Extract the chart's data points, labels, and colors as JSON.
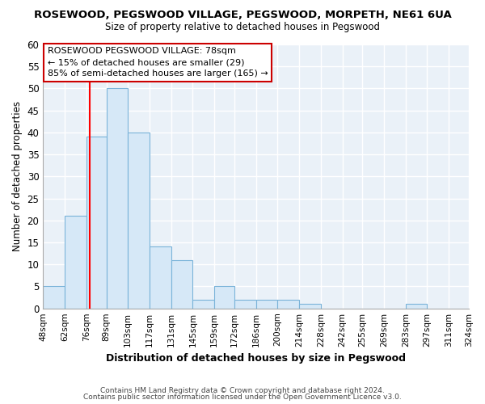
{
  "title": "ROSEWOOD, PEGSWOOD VILLAGE, PEGSWOOD, MORPETH, NE61 6UA",
  "subtitle": "Size of property relative to detached houses in Pegswood",
  "xlabel": "Distribution of detached houses by size in Pegswood",
  "ylabel": "Number of detached properties",
  "bin_edges": [
    48,
    62,
    76,
    89,
    103,
    117,
    131,
    145,
    159,
    172,
    186,
    200,
    214,
    228,
    242,
    255,
    269,
    283,
    297,
    311,
    324
  ],
  "bar_heights": [
    5,
    21,
    39,
    50,
    40,
    14,
    11,
    2,
    5,
    2,
    2,
    2,
    1,
    0,
    0,
    0,
    0,
    1,
    0,
    0
  ],
  "bar_color": "#d6e8f7",
  "bar_edge_color": "#7ab3d9",
  "property_line_x": 78,
  "property_line_color": "red",
  "ylim": [
    0,
    60
  ],
  "yticks": [
    0,
    5,
    10,
    15,
    20,
    25,
    30,
    35,
    40,
    45,
    50,
    55,
    60
  ],
  "annotation_text_line1": "ROSEWOOD PEGSWOOD VILLAGE: 78sqm",
  "annotation_text_line2": "← 15% of detached houses are smaller (29)",
  "annotation_text_line3": "85% of semi-detached houses are larger (165) →",
  "footer_line1": "Contains HM Land Registry data © Crown copyright and database right 2024.",
  "footer_line2": "Contains public sector information licensed under the Open Government Licence v3.0.",
  "background_color": "#ffffff",
  "plot_bg_color": "#eaf1f8",
  "grid_color": "#ffffff",
  "tick_labels": [
    "48sqm",
    "62sqm",
    "76sqm",
    "89sqm",
    "103sqm",
    "117sqm",
    "131sqm",
    "145sqm",
    "159sqm",
    "172sqm",
    "186sqm",
    "200sqm",
    "214sqm",
    "228sqm",
    "242sqm",
    "255sqm",
    "269sqm",
    "283sqm",
    "297sqm",
    "311sqm",
    "324sqm"
  ]
}
